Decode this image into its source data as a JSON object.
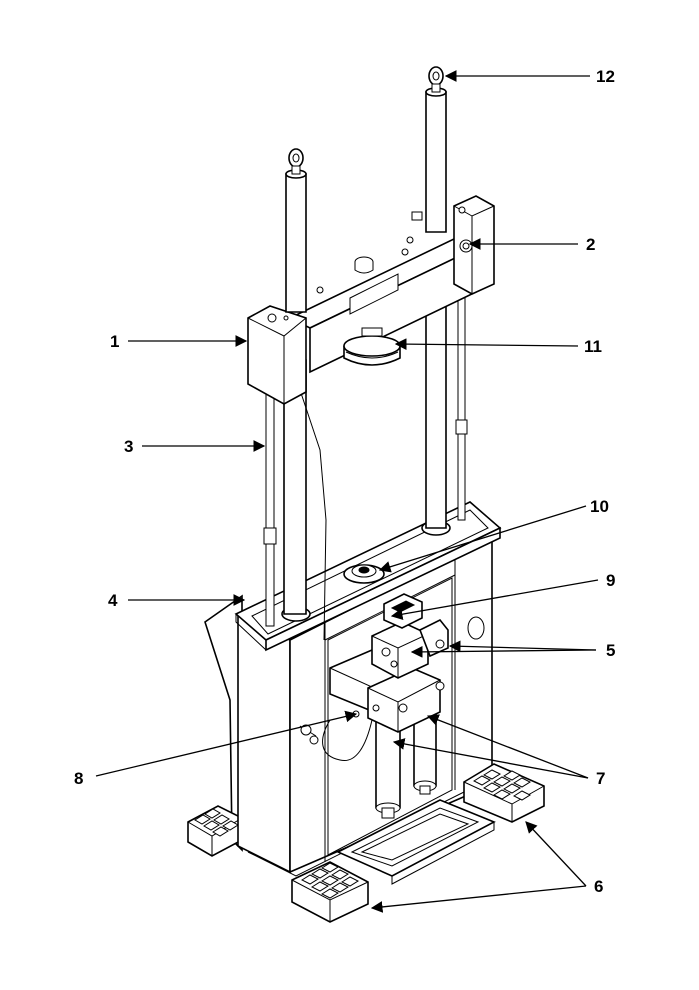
{
  "callouts": [
    {
      "id": "1",
      "label": "1"
    },
    {
      "id": "2",
      "label": "2"
    },
    {
      "id": "3",
      "label": "3"
    },
    {
      "id": "4",
      "label": "4"
    },
    {
      "id": "5",
      "label": "5"
    },
    {
      "id": "6",
      "label": "6"
    },
    {
      "id": "7",
      "label": "7"
    },
    {
      "id": "8",
      "label": "8"
    },
    {
      "id": "9",
      "label": "9"
    },
    {
      "id": "10",
      "label": "10"
    },
    {
      "id": "11",
      "label": "11"
    },
    {
      "id": "12",
      "label": "12"
    }
  ],
  "colors": {
    "line": "#000000",
    "background": "#ffffff",
    "shade": "#e6e6e6"
  }
}
